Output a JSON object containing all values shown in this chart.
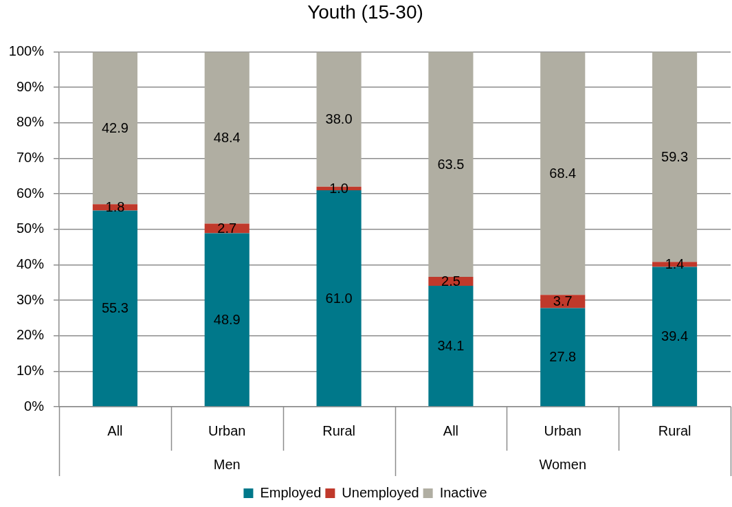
{
  "chart_data": {
    "type": "bar",
    "title": "Youth (15-30)",
    "categories": [
      "All",
      "Urban",
      "Rural",
      "All",
      "Urban",
      "Rural"
    ],
    "stacked": true,
    "series": [
      {
        "name": "Employed",
        "color": "#00788a",
        "values": [
          55.3,
          48.9,
          61.0,
          34.1,
          27.8,
          39.4
        ],
        "value_labels": [
          "55.3",
          "48.9",
          "61.0",
          "34.1",
          "27.8",
          "39.4"
        ]
      },
      {
        "name": "Unemployed",
        "color": "#c0392b",
        "values": [
          1.8,
          2.7,
          1.0,
          2.5,
          3.7,
          1.4
        ],
        "value_labels": [
          "1.8",
          "2.7",
          "1.0",
          "2.5",
          "3.7",
          "1.4"
        ]
      },
      {
        "name": "Inactive",
        "color": "#b0aea2",
        "values": [
          42.9,
          48.4,
          38.0,
          63.5,
          68.4,
          59.3
        ],
        "value_labels": [
          "42.9",
          "48.4",
          "38.0",
          "63.5",
          "68.4",
          "59.3"
        ]
      }
    ],
    "ylim": [
      0,
      100
    ],
    "yticks": [
      {
        "value": 0,
        "label": "0%"
      },
      {
        "value": 10,
        "label": "10%"
      },
      {
        "value": 20,
        "label": "20%"
      },
      {
        "value": 30,
        "label": "30%"
      },
      {
        "value": 40,
        "label": "40%"
      },
      {
        "value": 50,
        "label": "50%"
      },
      {
        "value": 60,
        "label": "60%"
      },
      {
        "value": 70,
        "label": "70%"
      },
      {
        "value": 80,
        "label": "80%"
      },
      {
        "value": 90,
        "label": "90%"
      },
      {
        "value": 100,
        "label": "100%"
      }
    ],
    "grid": "y",
    "legend": "bottom",
    "annotations": [
      "Men",
      "Women"
    ]
  }
}
